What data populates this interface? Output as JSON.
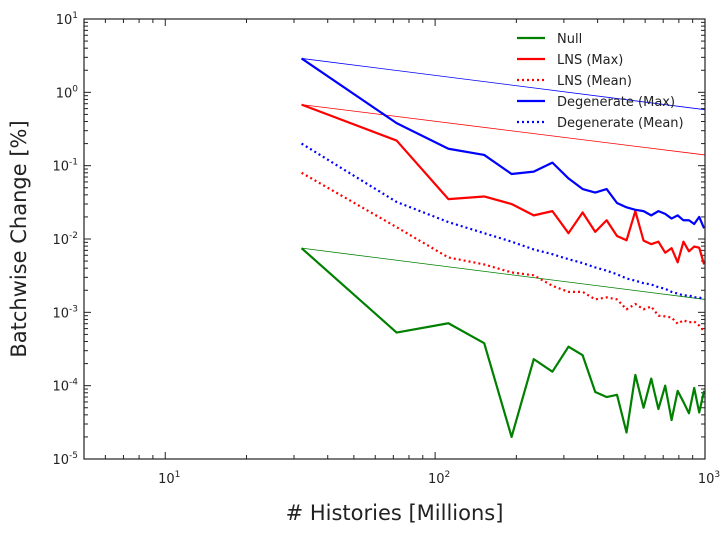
{
  "chart_data": {
    "type": "line",
    "xlabel": "# Histories [Millions]",
    "ylabel": "Batchwise Change [%]",
    "xscale": "log",
    "yscale": "log",
    "xlim": [
      5,
      1000
    ],
    "ylim": [
      1e-05,
      10
    ],
    "x_ticks": [
      {
        "value": 10,
        "base": "10",
        "exp": "1"
      },
      {
        "value": 100,
        "base": "10",
        "exp": "2"
      },
      {
        "value": 1000,
        "base": "10",
        "exp": "3"
      }
    ],
    "y_ticks": [
      {
        "value": 1e-05,
        "base": "10",
        "exp": "-5"
      },
      {
        "value": 0.0001,
        "base": "10",
        "exp": "-4"
      },
      {
        "value": 0.001,
        "base": "10",
        "exp": "-3"
      },
      {
        "value": 0.01,
        "base": "10",
        "exp": "-2"
      },
      {
        "value": 0.1,
        "base": "10",
        "exp": "-1"
      },
      {
        "value": 1,
        "base": "10",
        "exp": "0"
      },
      {
        "value": 10,
        "base": "10",
        "exp": "1"
      }
    ],
    "grid": false,
    "legend_position": "top-right",
    "series": [
      {
        "name": "Null",
        "color": "#008000",
        "style": "solid",
        "width": 2.2,
        "x": [
          32,
          72,
          112,
          152,
          192,
          232,
          272,
          312,
          352,
          392,
          432,
          472,
          512,
          552,
          592,
          632,
          672,
          712,
          752,
          792,
          832,
          872,
          912,
          952,
          992
        ],
        "y": [
          0.0075,
          0.00053,
          0.00071,
          0.00038,
          2e-05,
          0.00023,
          0.000155,
          0.00034,
          0.00026,
          8.2e-05,
          7e-05,
          7.5e-05,
          2.3e-05,
          0.00014,
          5e-05,
          0.000125,
          4.8e-05,
          0.0001,
          3.4e-05,
          8.5e-05,
          6e-05,
          4.2e-05,
          9.3e-05,
          4.3e-05,
          8.5e-05
        ]
      },
      {
        "name": "LNS (Max)",
        "color": "#ff0000",
        "style": "solid",
        "width": 2.2,
        "x": [
          32,
          72,
          112,
          152,
          192,
          232,
          272,
          312,
          352,
          392,
          432,
          472,
          512,
          552,
          592,
          632,
          672,
          712,
          752,
          792,
          832,
          872,
          912,
          952,
          992
        ],
        "y": [
          0.68,
          0.22,
          0.035,
          0.038,
          0.03,
          0.021,
          0.024,
          0.012,
          0.023,
          0.0125,
          0.018,
          0.011,
          0.0096,
          0.024,
          0.0095,
          0.0085,
          0.0092,
          0.0065,
          0.0075,
          0.0048,
          0.0092,
          0.0068,
          0.0079,
          0.0076,
          0.0045
        ]
      },
      {
        "name": "LNS (Mean)",
        "color": "#ff0000",
        "style": "dotted",
        "width": 2.2,
        "x": [
          32,
          72,
          112,
          152,
          192,
          232,
          272,
          312,
          352,
          392,
          432,
          472,
          512,
          552,
          592,
          632,
          672,
          712,
          752,
          792,
          832,
          872,
          912,
          952,
          992
        ],
        "y": [
          0.08,
          0.0145,
          0.0056,
          0.0045,
          0.0035,
          0.0032,
          0.0023,
          0.0019,
          0.0019,
          0.0015,
          0.0016,
          0.0015,
          0.0011,
          0.0013,
          0.0011,
          0.0012,
          0.0009,
          0.00088,
          0.00085,
          0.0007,
          0.00078,
          0.00073,
          0.00075,
          0.00066,
          0.00055
        ]
      },
      {
        "name": "Degenerate (Max)",
        "color": "#0000ff",
        "style": "solid",
        "width": 2.2,
        "x": [
          32,
          72,
          112,
          152,
          192,
          232,
          272,
          312,
          352,
          392,
          432,
          472,
          512,
          552,
          592,
          632,
          672,
          712,
          752,
          792,
          832,
          872,
          912,
          952,
          992
        ],
        "y": [
          2.9,
          0.38,
          0.17,
          0.14,
          0.077,
          0.083,
          0.11,
          0.067,
          0.048,
          0.043,
          0.048,
          0.031,
          0.027,
          0.025,
          0.024,
          0.021,
          0.024,
          0.022,
          0.019,
          0.021,
          0.018,
          0.018,
          0.016,
          0.02,
          0.014
        ]
      },
      {
        "name": "Degenerate (Mean)",
        "color": "#0000ff",
        "style": "dotted",
        "width": 2.2,
        "x": [
          32,
          72,
          112,
          152,
          192,
          232,
          272,
          312,
          352,
          392,
          432,
          472,
          512,
          552,
          592,
          632,
          672,
          712,
          752,
          792,
          832,
          872,
          912,
          952,
          992
        ],
        "y": [
          0.2,
          0.032,
          0.017,
          0.012,
          0.0092,
          0.0072,
          0.0062,
          0.0053,
          0.0047,
          0.0041,
          0.0037,
          0.0033,
          0.0029,
          0.0027,
          0.0025,
          0.0024,
          0.0022,
          0.0021,
          0.0019,
          0.0018,
          0.0017,
          0.0017,
          0.0016,
          0.0016,
          0.0015
        ]
      }
    ],
    "reference_lines": [
      {
        "color": "#008000",
        "style": "solid",
        "width": 0.8,
        "x": [
          32,
          1000
        ],
        "y": [
          0.0075,
          0.0015
        ]
      },
      {
        "color": "#ff0000",
        "style": "solid",
        "width": 0.8,
        "x": [
          32,
          1000
        ],
        "y": [
          0.68,
          0.14
        ]
      },
      {
        "color": "#0000ff",
        "style": "solid",
        "width": 0.8,
        "x": [
          32,
          1000
        ],
        "y": [
          2.9,
          0.58
        ]
      }
    ]
  }
}
